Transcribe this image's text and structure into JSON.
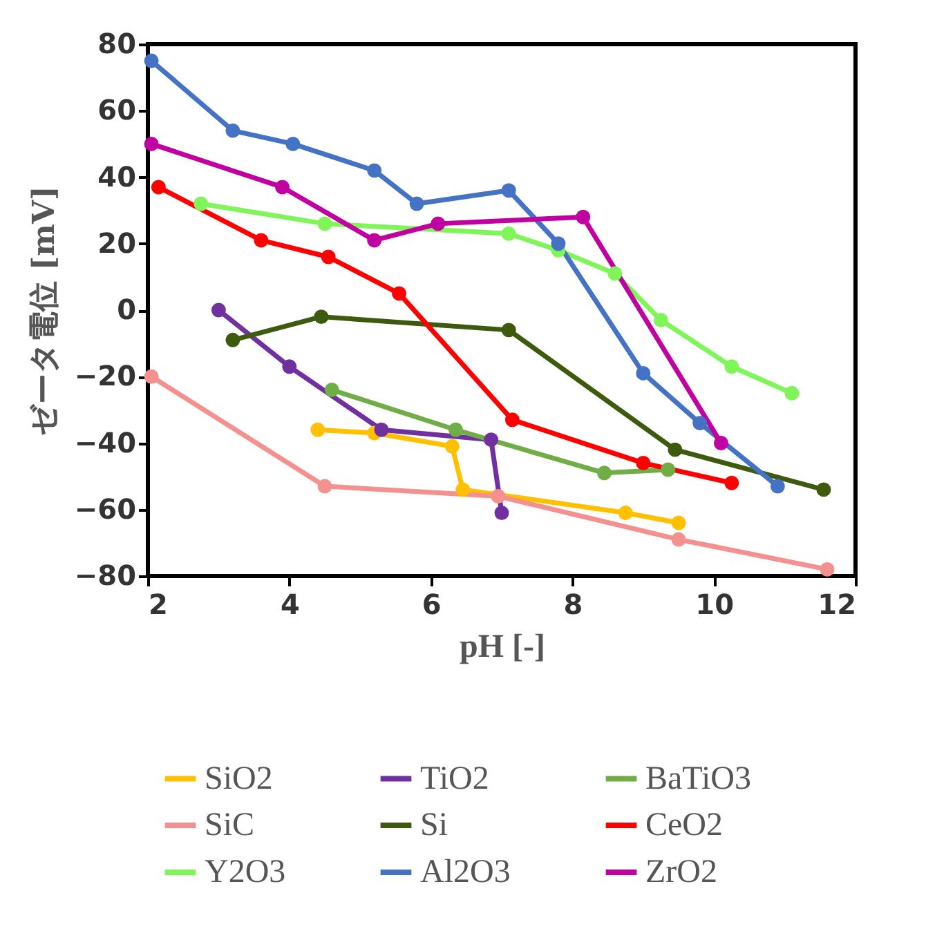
{
  "chart_data": {
    "type": "line",
    "xlabel": "pH [-]",
    "ylabel": "ゼータ電位 [mV]",
    "xlim": [
      2,
      12
    ],
    "xticks": [
      2,
      4,
      6,
      8,
      10,
      12
    ],
    "ylim": [
      -80,
      80
    ],
    "yticks": [
      -80,
      -60,
      -40,
      -20,
      0,
      20,
      40,
      60,
      80
    ],
    "grid": false,
    "legend": "bottom",
    "marker": "circle",
    "line_style": "solid",
    "series": [
      {
        "name": "SiO2",
        "color": "#ffc000",
        "x": [
          4.4,
          5.2,
          6.3,
          6.45,
          8.75,
          9.5
        ],
        "values": [
          -36,
          -37,
          -41,
          -54,
          -61,
          -64
        ]
      },
      {
        "name": "TiO2",
        "color": "#7030a0",
        "x": [
          3.0,
          4.0,
          5.3,
          6.85,
          7.0
        ],
        "values": [
          0,
          -17,
          -36,
          -39,
          -61
        ]
      },
      {
        "name": "BaTiO3",
        "color": "#70ad47",
        "x": [
          4.6,
          6.35,
          8.45,
          9.35
        ],
        "values": [
          -24,
          -36,
          -49,
          -48
        ]
      },
      {
        "name": "SiC",
        "color": "#f4908e",
        "x": [
          2.05,
          4.5,
          6.95,
          9.5,
          11.6
        ],
        "values": [
          -20,
          -53,
          -56,
          -69,
          -78
        ]
      },
      {
        "name": "Si",
        "color": "#3d5a0f",
        "x": [
          3.2,
          4.45,
          7.1,
          9.45,
          11.55
        ],
        "values": [
          -9,
          -2,
          -6,
          -42,
          -54
        ]
      },
      {
        "name": "CeO2",
        "color": "#ff0000",
        "x": [
          2.15,
          3.6,
          4.55,
          5.55,
          7.15,
          9.0,
          10.25
        ],
        "values": [
          37,
          21,
          16,
          5,
          -33,
          -46,
          -52
        ]
      },
      {
        "name": "Y2O3",
        "color": "#80f55a",
        "x": [
          2.75,
          4.5,
          7.1,
          7.8,
          8.6,
          9.25,
          10.25,
          11.1
        ],
        "values": [
          32,
          26,
          23,
          18,
          11,
          -3,
          -17,
          -25
        ]
      },
      {
        "name": "Al2O3",
        "color": "#4472c4",
        "x": [
          2.05,
          3.2,
          4.05,
          5.2,
          5.8,
          7.1,
          7.8,
          9.0,
          9.8,
          10.9
        ],
        "values": [
          75,
          54,
          50,
          42,
          32,
          36,
          20,
          -19,
          -34,
          -53
        ]
      },
      {
        "name": "ZrO2",
        "color": "#c000a0",
        "x": [
          2.05,
          3.9,
          5.2,
          6.1,
          8.15,
          10.1
        ],
        "values": [
          50,
          37,
          21,
          26,
          28,
          -40
        ]
      }
    ]
  }
}
